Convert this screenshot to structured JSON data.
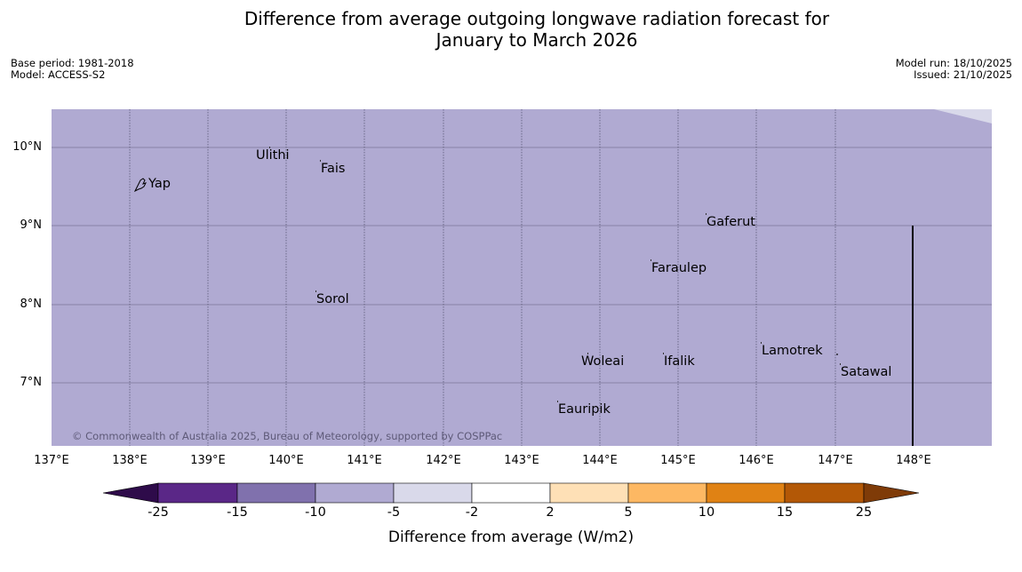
{
  "header": {
    "title_line1": "Difference from average outgoing longwave radiation forecast for",
    "title_line2": "January to March 2026",
    "base_period": "Base period: 1981-2018",
    "model": "Model: ACCESS-S2",
    "model_run": "Model run: 18/10/2025",
    "issued": "Issued: 21/10/2025"
  },
  "map": {
    "background_color": "#b0aad2",
    "copyright": "© Commonwealth of Australia 2025, Bureau of Meteorology, supported by COSPPac",
    "lat_labels": [
      "10°N",
      "9°N",
      "8°N",
      "7°N"
    ],
    "lon_labels": [
      "137°E",
      "138°E",
      "139°E",
      "140°E",
      "141°E",
      "142°E",
      "143°E",
      "144°E",
      "145°E",
      "146°E",
      "147°E",
      "148°E"
    ],
    "places": [
      "Yap",
      "Ulithi",
      "Fais",
      "Gaferut",
      "Faraulep",
      "Sorol",
      "Lamotrek",
      "Woleai",
      "Ifalik",
      "Satawal",
      "Eauripik"
    ]
  },
  "colorbar": {
    "title": "Difference from average (W/m2)",
    "tick_labels": [
      "-25",
      "-15",
      "-10",
      "-5",
      "-2",
      "2",
      "5",
      "10",
      "15",
      "25"
    ],
    "colors": [
      "#2e0b4a",
      "#5a2787",
      "#8071ad",
      "#b0aad2",
      "#d9d9ea",
      "#ffffff",
      "#fee0b6",
      "#fdb863",
      "#e08214",
      "#b35806",
      "#7f3b08"
    ]
  }
}
